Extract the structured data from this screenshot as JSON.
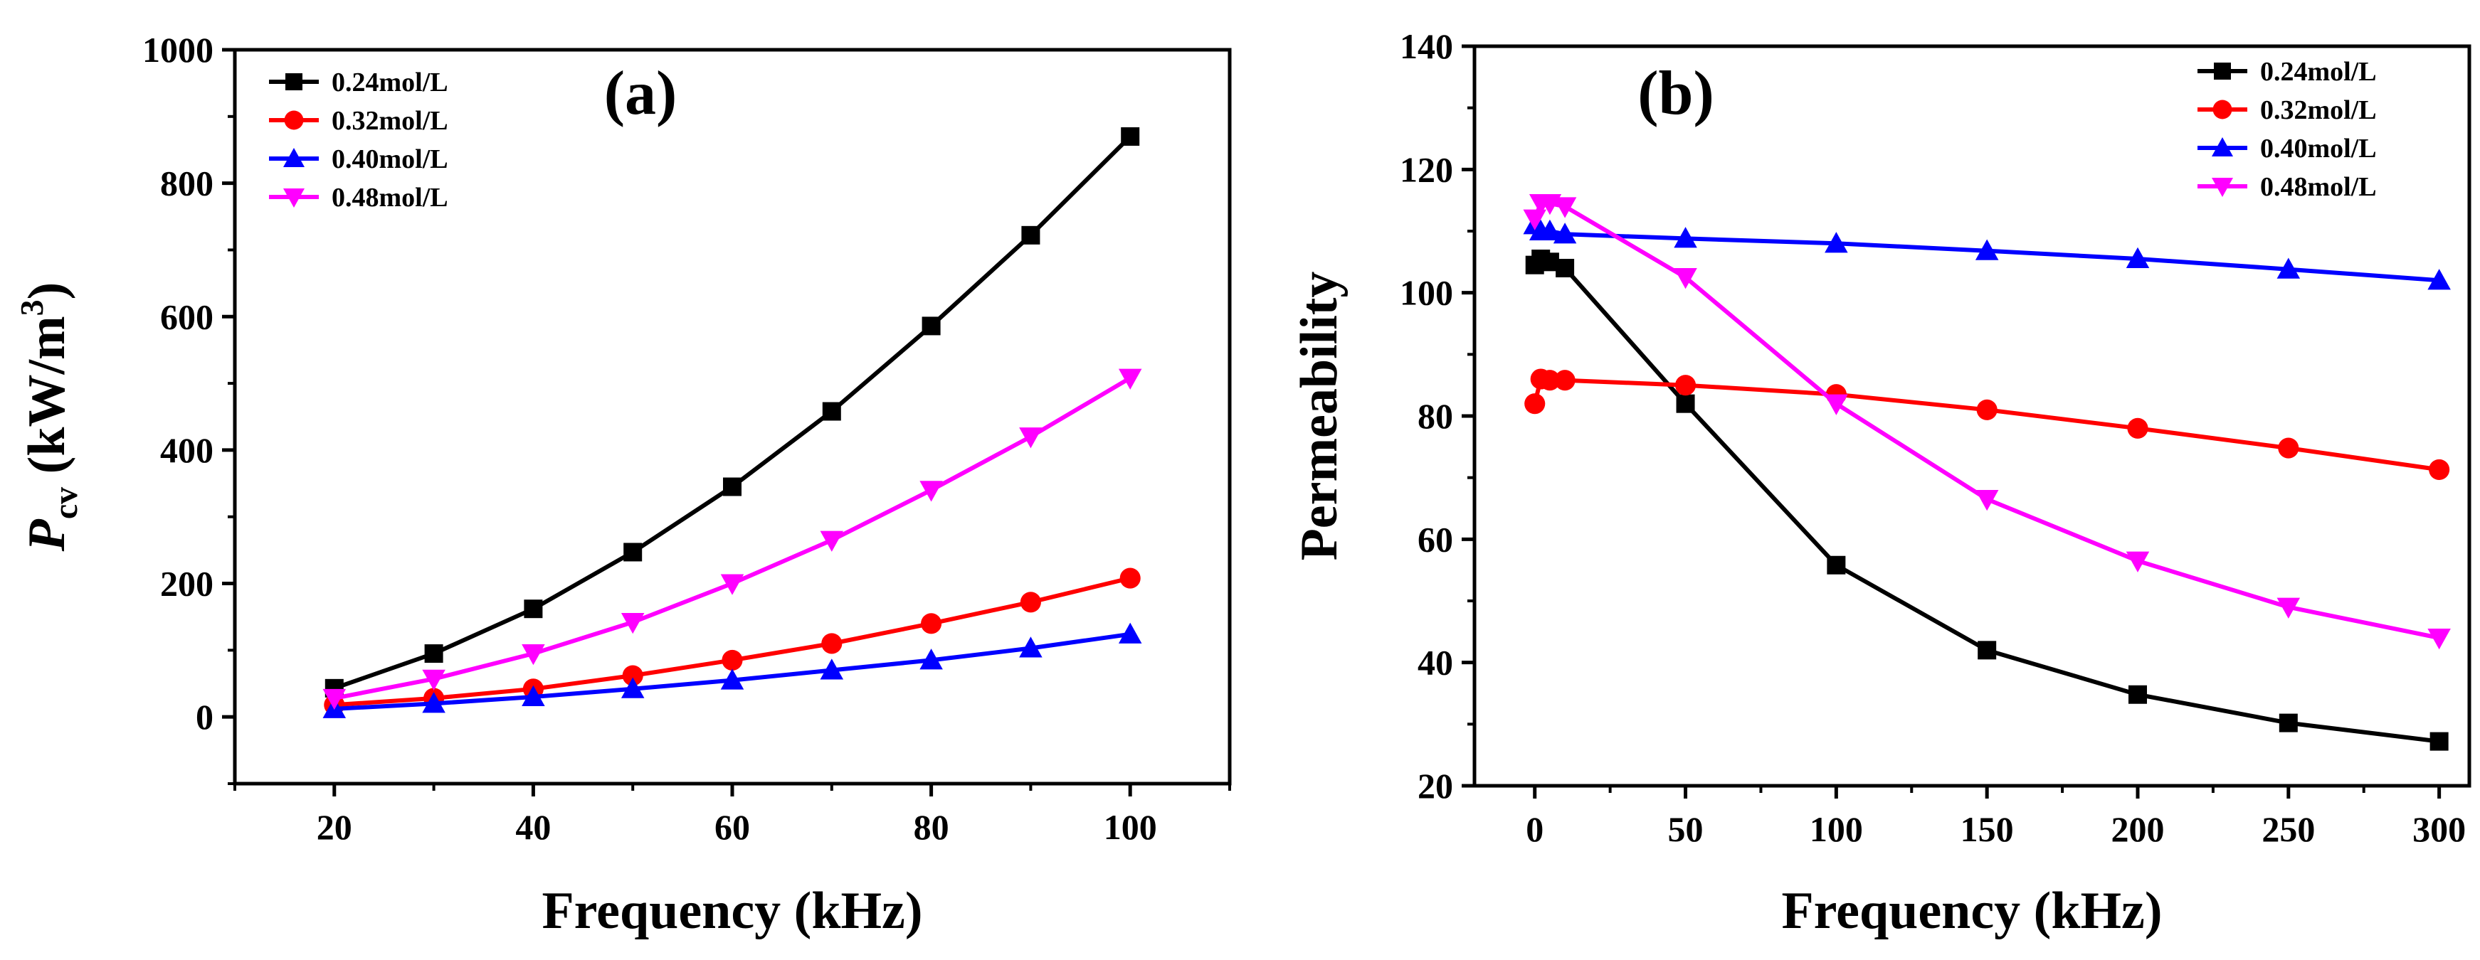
{
  "chart_data": [
    {
      "type": "line",
      "panel_label": "(a)",
      "title": "",
      "xlabel": "Frequency (kHz)",
      "ylabel_main": "P",
      "ylabel_sub": "cv",
      "ylabel_unit_open": " (kW/m",
      "ylabel_unit_sup": "3",
      "ylabel_unit_close": ")",
      "xlim": [
        10,
        110
      ],
      "ylim": [
        -100,
        1000
      ],
      "xticks": [
        20,
        40,
        60,
        80,
        100
      ],
      "yticks": [
        0,
        200,
        400,
        600,
        800,
        1000
      ],
      "legend_position": "top-left",
      "grid": false,
      "x": [
        20,
        30,
        40,
        50,
        60,
        70,
        80,
        90,
        100
      ],
      "series": [
        {
          "name": "0.24mol/L",
          "color": "#000000",
          "marker": "square",
          "values": [
            43,
            95,
            162,
            247,
            345,
            458,
            586,
            722,
            870
          ]
        },
        {
          "name": "0.32mol/L",
          "color": "#ff0000",
          "marker": "circle",
          "values": [
            18,
            28,
            42,
            62,
            85,
            110,
            140,
            172,
            208
          ]
        },
        {
          "name": "0.40mol/L",
          "color": "#0000ff",
          "marker": "triangle-up",
          "values": [
            12,
            20,
            30,
            42,
            55,
            70,
            85,
            103,
            124
          ]
        },
        {
          "name": "0.48mol/L",
          "color": "#ff00ff",
          "marker": "triangle-down",
          "values": [
            28,
            57,
            95,
            142,
            200,
            265,
            340,
            420,
            508
          ]
        }
      ]
    },
    {
      "type": "line",
      "panel_label": "(b)",
      "title": "",
      "xlabel": "Frequency (kHz)",
      "ylabel": "Permeability",
      "xlim": [
        -20,
        310
      ],
      "ylim": [
        20,
        140
      ],
      "xticks": [
        0,
        50,
        100,
        150,
        200,
        250,
        300
      ],
      "yticks": [
        20,
        40,
        60,
        80,
        100,
        120,
        140
      ],
      "legend_position": "top-right",
      "grid": false,
      "series": [
        {
          "name": "0.24mol/L",
          "color": "#000000",
          "marker": "square",
          "x": [
            0,
            2,
            5,
            10,
            50,
            100,
            150,
            200,
            250,
            300
          ],
          "values": [
            104.5,
            105.5,
            105,
            104,
            82,
            55.8,
            42,
            34.8,
            30.2,
            27.2
          ]
        },
        {
          "name": "0.32mol/L",
          "color": "#ff0000",
          "marker": "circle",
          "x": [
            0,
            2,
            5,
            10,
            50,
            100,
            150,
            200,
            250,
            300
          ],
          "values": [
            82,
            86,
            85.8,
            85.8,
            85,
            83.5,
            81,
            78,
            74.8,
            71.3
          ]
        },
        {
          "name": "0.40mol/L",
          "color": "#0000ff",
          "marker": "triangle-up",
          "x": [
            0,
            2,
            5,
            10,
            50,
            100,
            150,
            200,
            250,
            300
          ],
          "values": [
            111,
            110,
            110,
            109.5,
            108.8,
            108,
            106.8,
            105.5,
            103.8,
            102
          ]
        },
        {
          "name": "0.48mol/L",
          "color": "#ff00ff",
          "marker": "triangle-down",
          "x": [
            0,
            2,
            5,
            10,
            50,
            100,
            150,
            200,
            250,
            300
          ],
          "values": [
            112,
            114.5,
            114.5,
            114,
            102.5,
            82,
            66.5,
            56.5,
            49,
            44
          ]
        }
      ]
    }
  ]
}
